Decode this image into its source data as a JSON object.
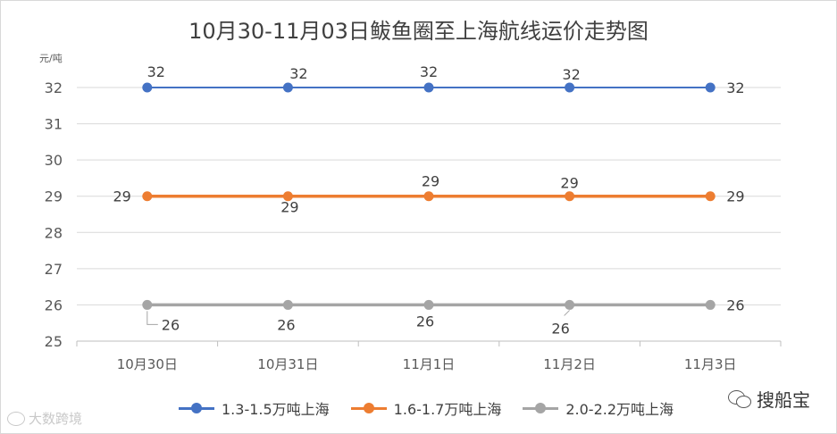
{
  "chart_data": {
    "type": "line",
    "title": "10月30-11月03日鲅鱼圈至上海航线运价走势图",
    "ylabel": "元/吨",
    "xlabel": "",
    "ylim": [
      25,
      32
    ],
    "yticks": [
      "25",
      "26",
      "27",
      "28",
      "29",
      "30",
      "31",
      "32"
    ],
    "categories": [
      "10月30日",
      "10月31日",
      "11月1日",
      "11月2日",
      "11月3日"
    ],
    "grid": true,
    "legend_position": "bottom",
    "series": [
      {
        "name": "1.3-1.5万吨上海",
        "color": "#4472c4",
        "values": [
          32,
          32,
          32,
          32,
          32
        ]
      },
      {
        "name": "1.6-1.7万吨上海",
        "color": "#ed7d31",
        "values": [
          29,
          29,
          29,
          29,
          29
        ]
      },
      {
        "name": "2.0-2.2万吨上海",
        "color": "#a5a5a5",
        "values": [
          26,
          26,
          26,
          26,
          26
        ]
      }
    ]
  },
  "watermarks": {
    "right_text": "搜船宝",
    "right_icon": "wechat-icon",
    "left_text": "大数跨境",
    "left_icon": "weibo-icon"
  }
}
